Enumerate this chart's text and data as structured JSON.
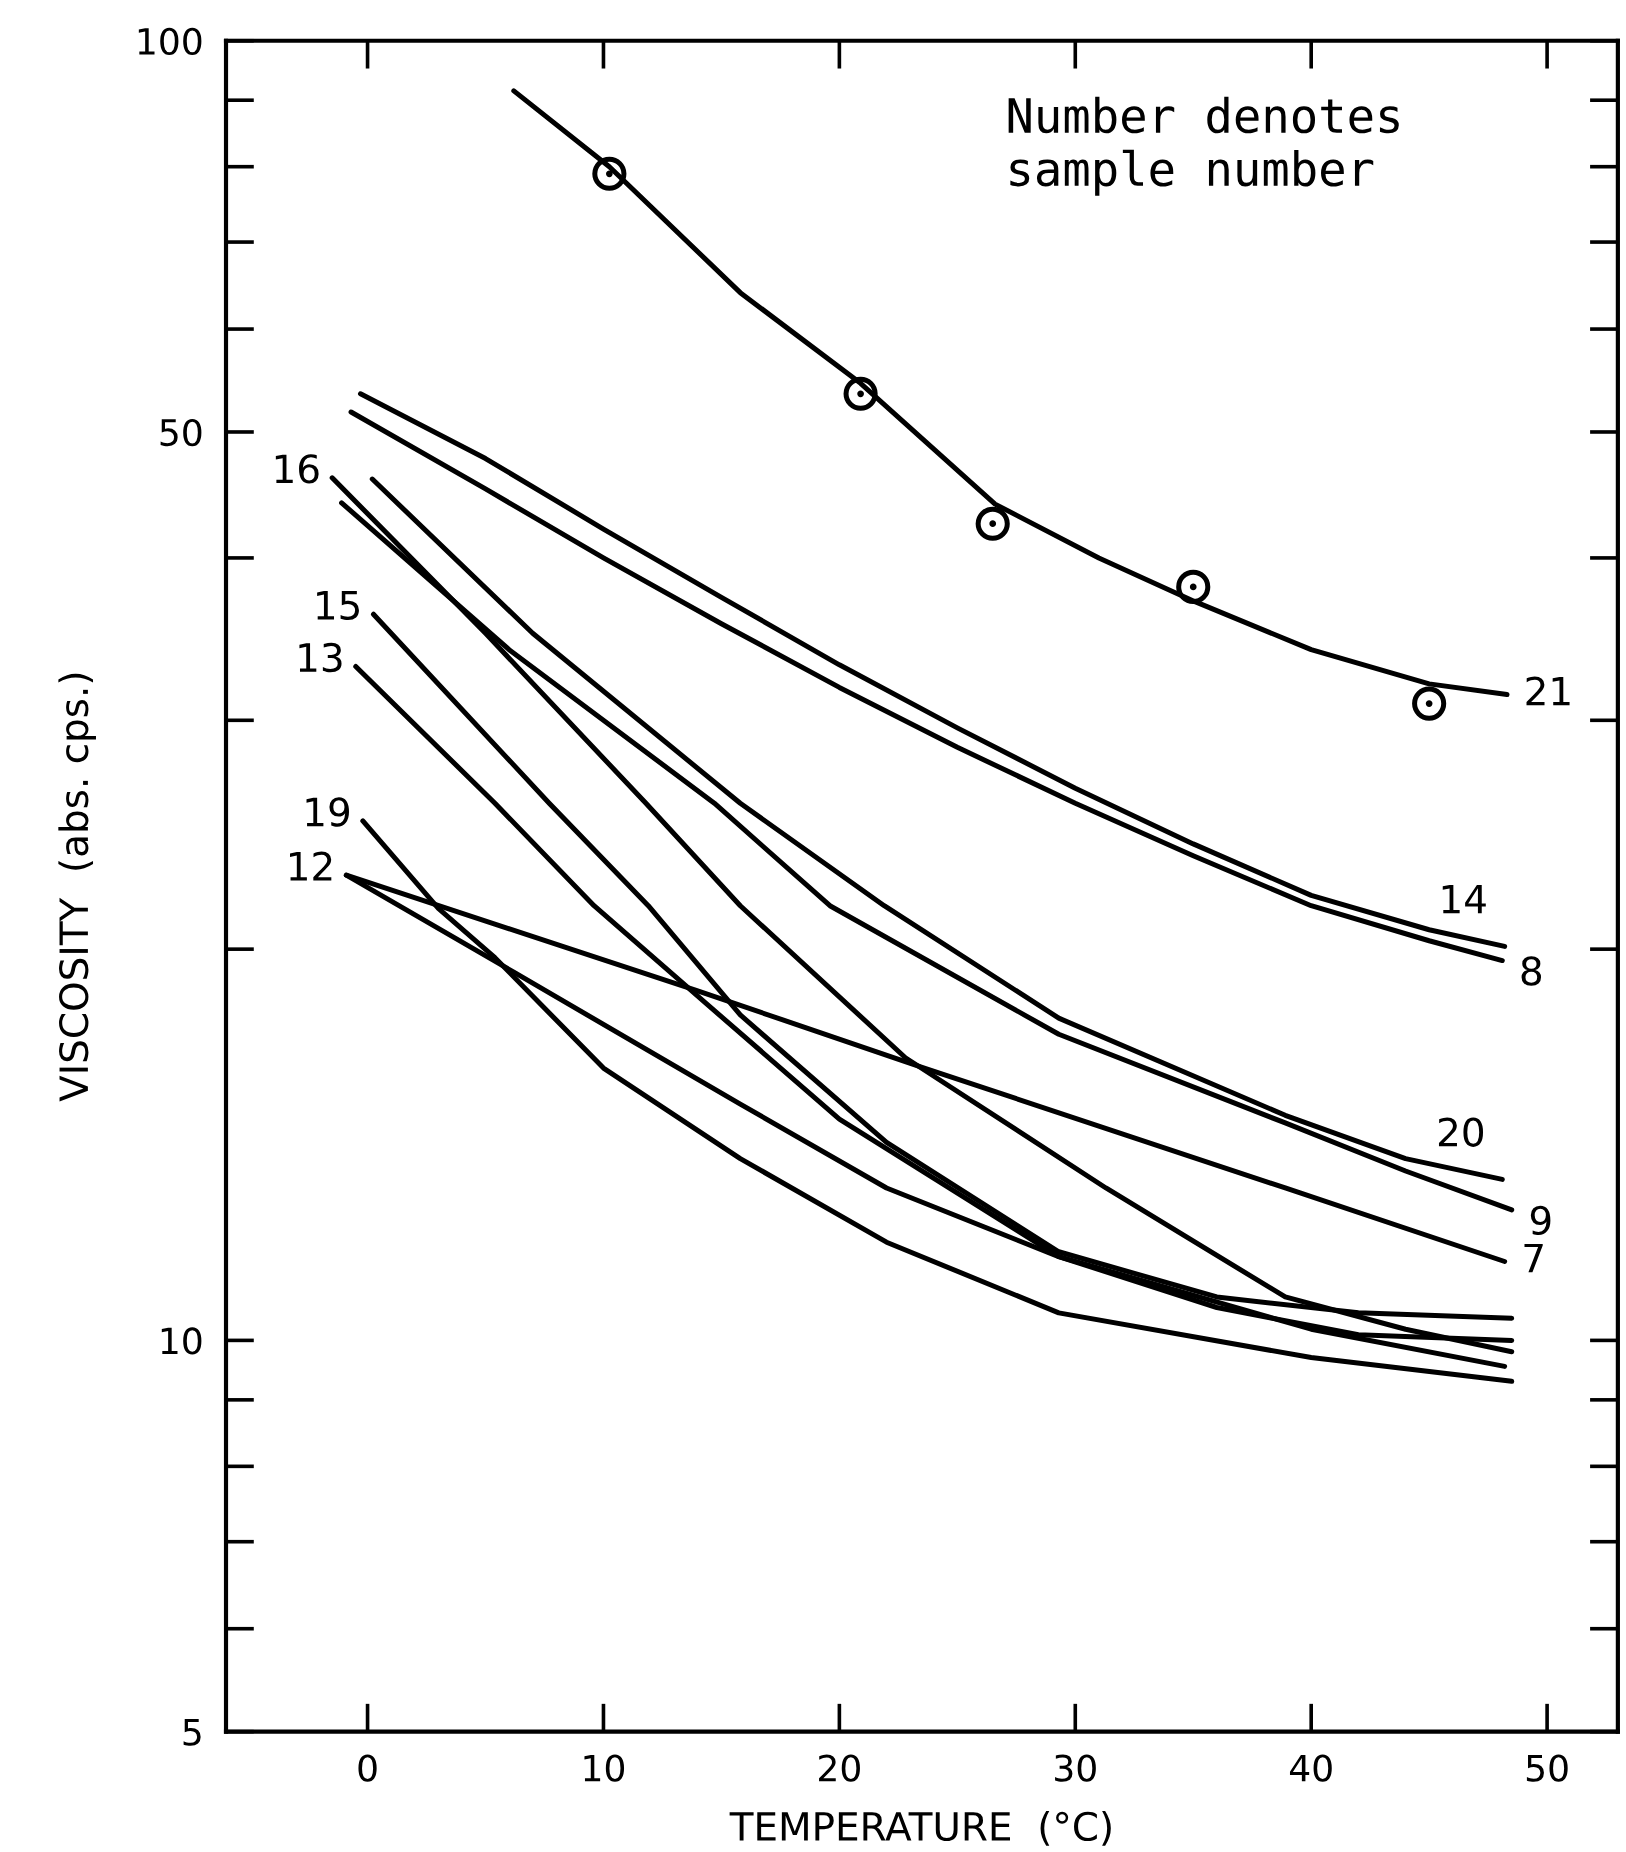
{
  "chart_data": {
    "type": "line",
    "xlabel": "TEMPERATURE  (°C)",
    "ylabel": "VISCOSITY  (abs. cps.)",
    "log": "y",
    "grid": false,
    "legend": false,
    "line_style": "solid",
    "xlim": [
      -6,
      53
    ],
    "xticks": [
      0,
      10,
      20,
      30,
      40,
      50
    ],
    "ylim": [
      5,
      100
    ],
    "yticks": [
      5,
      {
        "value": 6,
        "label": null
      },
      {
        "value": 7,
        "label": null
      },
      {
        "value": 8,
        "label": null
      },
      {
        "value": 9,
        "label": null
      },
      10,
      {
        "value": 20,
        "label": null
      },
      {
        "value": 30,
        "label": null
      },
      {
        "value": 40,
        "label": null
      },
      50,
      {
        "value": 60,
        "label": null
      },
      {
        "value": 70,
        "label": null
      },
      {
        "value": 80,
        "label": null
      },
      {
        "value": 90,
        "label": null
      },
      100
    ],
    "series": [
      {
        "color": "#000000",
        "marker": "none",
        "x": [
          6.2,
          10.25,
          15.8,
          20.9,
          26.6,
          31,
          35.1,
          40,
          45,
          48.3
        ],
        "values": [
          91.5,
          80,
          64,
          54.5,
          44,
          40,
          37,
          34,
          32,
          31.4
        ]
      },
      {
        "type": "scatter",
        "color": "#000000",
        "marker": "circle",
        "x": [
          10.25,
          20.9,
          26.5,
          35,
          45
        ],
        "values": [
          79,
          53.5,
          42.5,
          38,
          30.9
        ]
      },
      {
        "color": "#000000",
        "marker": "none",
        "x": [
          -0.3,
          5,
          10,
          15,
          20,
          25,
          30,
          35,
          40,
          45,
          48.2
        ],
        "values": [
          53.5,
          47.7,
          42.1,
          37.3,
          33.1,
          29.6,
          26.6,
          24.1,
          22.0,
          20.7,
          20.1
        ]
      },
      {
        "color": "#000000",
        "marker": "none",
        "x": [
          -0.7,
          5,
          10,
          15,
          20,
          25,
          30,
          35,
          40,
          45,
          48.1
        ],
        "values": [
          51.8,
          45.2,
          40.0,
          35.6,
          31.8,
          28.6,
          25.9,
          23.6,
          21.6,
          20.3,
          19.6
        ]
      },
      {
        "color": "#000000",
        "marker": "none",
        "x": [
          0.2,
          7,
          15.8,
          21.9,
          29.3,
          38.9,
          44,
          48.1
        ],
        "values": [
          46,
          35,
          25.9,
          21.6,
          17.7,
          14.9,
          13.8,
          13.3
        ]
      },
      {
        "color": "#000000",
        "marker": "none",
        "x": [
          -1.1,
          6,
          14.7,
          19.6,
          29.3,
          38.9,
          44,
          48.5
        ],
        "values": [
          44.1,
          34,
          25.9,
          21.6,
          17.2,
          14.7,
          13.5,
          12.6
        ]
      },
      {
        "color": "#000000",
        "marker": "none",
        "x": [
          -0.9,
          13.9,
          23.6,
          38.9,
          48.2
        ],
        "values": [
          22.8,
          18.6,
          16.2,
          13.1,
          11.5
        ]
      },
      {
        "color": "#000000",
        "marker": "none",
        "x": [
          -1.5,
          5,
          11.8,
          15.8,
          22.8,
          31.3,
          38.9,
          44,
          48.5
        ],
        "values": [
          46.1,
          35,
          25.9,
          21.6,
          16.5,
          13.1,
          10.8,
          10.2,
          9.8
        ]
      },
      {
        "color": "#000000",
        "marker": "none",
        "x": [
          0.25,
          7.7,
          11.9,
          15.8,
          22,
          29.3,
          36,
          42,
          48.5
        ],
        "values": [
          36.2,
          25.9,
          21.6,
          17.8,
          14.2,
          11.7,
          10.8,
          10.5,
          10.4
        ]
      },
      {
        "color": "#000000",
        "marker": "none",
        "x": [
          -0.5,
          5.4,
          9.6,
          14.3,
          20,
          29.3,
          36,
          42,
          48.5
        ],
        "values": [
          33,
          25.9,
          21.6,
          18.2,
          14.8,
          11.6,
          10.6,
          10.1,
          10.0
        ]
      },
      {
        "color": "#000000",
        "marker": "none",
        "x": [
          -0.2,
          3,
          5.4,
          10,
          15.8,
          22,
          29.3,
          40,
          48.5
        ],
        "values": [
          25.1,
          21.5,
          19.7,
          16.2,
          13.8,
          11.9,
          10.5,
          9.7,
          9.3
        ]
      },
      {
        "color": "#000000",
        "marker": "none",
        "x": [
          -0.9,
          6.2,
          15.8,
          22,
          29.3,
          40,
          48.2
        ],
        "values": [
          22.8,
          19.2,
          15.2,
          13.1,
          11.6,
          10.2,
          9.55
        ]
      }
    ],
    "annotations": [
      "Number denotes\nsample number",
      {
        "text": "21",
        "x": 48.3,
        "y": 31.4
      },
      {
        "text": "14",
        "x": 48.2,
        "y": 20.1
      },
      {
        "text": "8",
        "x": 48.1,
        "y": 19.6
      },
      {
        "text": "20",
        "x": 48.1,
        "y": 13.3
      },
      {
        "text": "9",
        "x": 48.5,
        "y": 12.6
      },
      {
        "text": "7",
        "x": 48.2,
        "y": 11.5
      },
      {
        "text": "16",
        "x": -1.5,
        "y": 46.1
      },
      {
        "text": "15",
        "x": 0.25,
        "y": 36.2
      },
      {
        "text": "13",
        "x": -0.5,
        "y": 33
      },
      {
        "text": "19",
        "x": -0.2,
        "y": 25.1
      },
      {
        "text": "12",
        "x": -0.9,
        "y": 22.8
      }
    ]
  }
}
